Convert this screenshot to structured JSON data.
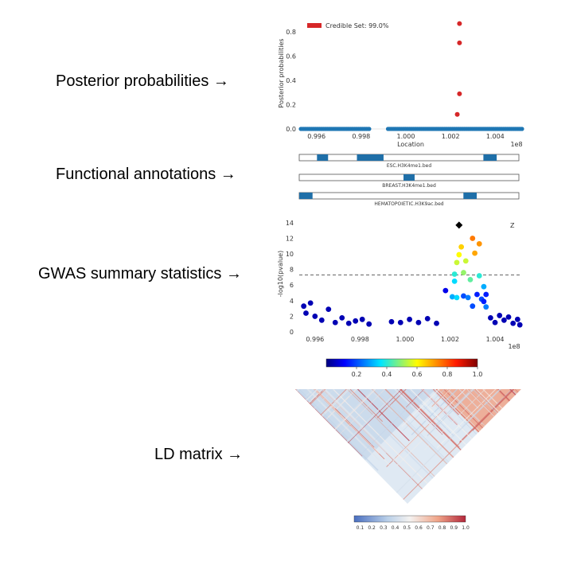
{
  "labels": {
    "posterior": "Posterior probabilities →",
    "functional": "Functional annotations →",
    "gwas": "GWAS summary statistics →",
    "ld": "LD matrix →"
  },
  "chart_data": [
    {
      "type": "scatter",
      "ylabel": "Posterior probabilities",
      "xlabel": "Location",
      "x_scale_label": "1e8",
      "legend_label": "Credible Set: 99.0%",
      "legend_color": "#d62728",
      "xlim": [
        0.9953,
        1.0052
      ],
      "ylim": [
        0,
        0.9
      ],
      "xticks": [
        {
          "v": 0.996,
          "label": "0.996"
        },
        {
          "v": 0.998,
          "label": "0.998"
        },
        {
          "v": 1.0,
          "label": "1.000"
        },
        {
          "v": 1.002,
          "label": "1.002"
        },
        {
          "v": 1.004,
          "label": "1.004"
        }
      ],
      "yticks": [
        {
          "v": 0.0,
          "label": "0.0"
        },
        {
          "v": 0.2,
          "label": "0.2"
        },
        {
          "v": 0.4,
          "label": "0.4"
        },
        {
          "v": 0.6,
          "label": "0.6"
        },
        {
          "v": 0.8,
          "label": "0.8"
        }
      ],
      "background_color": "#1f77b4",
      "background_ranges": [
        [
          0.9953,
          0.9984
        ],
        [
          0.9992,
          1.0052
        ]
      ],
      "credible_set_points": [
        {
          "x": 1.0024,
          "y": 0.87
        },
        {
          "x": 1.0024,
          "y": 0.71
        },
        {
          "x": 1.0024,
          "y": 0.29
        },
        {
          "x": 1.0023,
          "y": 0.12
        }
      ]
    },
    {
      "type": "table",
      "tracks": [
        {
          "name": "ESC.H3K4me1.bed",
          "blocks": [
            [
              0.9961,
              0.9966
            ],
            [
              0.9979,
              0.9991
            ],
            [
              1.0036,
              1.0042
            ]
          ]
        },
        {
          "name": "BREAST.H3K4me1.bed",
          "blocks": [
            [
              1.0,
              1.0005
            ]
          ]
        },
        {
          "name": "HEMATOPOIETIC.H3K9ac.bed",
          "blocks": [
            [
              0.9953,
              0.9959
            ],
            [
              1.0027,
              1.0033
            ]
          ]
        }
      ]
    },
    {
      "type": "scatter",
      "ylabel": "-log10(pvalue)",
      "x_scale_label": "1e8",
      "corner_label": "Z",
      "xlim": [
        0.9953,
        1.0052
      ],
      "ylim": [
        0,
        14.5
      ],
      "threshold": 7.3,
      "xticks": [
        {
          "v": 0.996,
          "label": "0.996"
        },
        {
          "v": 0.998,
          "label": "0.998"
        },
        {
          "v": 1.0,
          "label": "1.000"
        },
        {
          "v": 1.002,
          "label": "1.002"
        },
        {
          "v": 1.004,
          "label": "1.004"
        }
      ],
      "yticks": [
        {
          "v": 0,
          "label": "0"
        },
        {
          "v": 2,
          "label": "2"
        },
        {
          "v": 4,
          "label": "4"
        },
        {
          "v": 6,
          "label": "6"
        },
        {
          "v": 8,
          "label": "8"
        },
        {
          "v": 10,
          "label": "10"
        },
        {
          "v": 12,
          "label": "12"
        },
        {
          "v": 14,
          "label": "14"
        }
      ],
      "lead_snp": {
        "x": 1.0024,
        "y": 13.7
      },
      "points": [
        {
          "x": 0.9955,
          "y": 3.3,
          "ld": 0.05
        },
        {
          "x": 0.9956,
          "y": 2.4,
          "ld": 0.05
        },
        {
          "x": 0.9958,
          "y": 3.7,
          "ld": 0.05
        },
        {
          "x": 0.996,
          "y": 2.0,
          "ld": 0.05
        },
        {
          "x": 0.9963,
          "y": 1.5,
          "ld": 0.05
        },
        {
          "x": 0.9966,
          "y": 2.9,
          "ld": 0.05
        },
        {
          "x": 0.9969,
          "y": 1.2,
          "ld": 0.05
        },
        {
          "x": 0.9972,
          "y": 1.8,
          "ld": 0.05
        },
        {
          "x": 0.9975,
          "y": 1.1,
          "ld": 0.05
        },
        {
          "x": 0.9978,
          "y": 1.4,
          "ld": 0.05
        },
        {
          "x": 0.9981,
          "y": 1.6,
          "ld": 0.05
        },
        {
          "x": 0.9984,
          "y": 1.0,
          "ld": 0.05
        },
        {
          "x": 0.9994,
          "y": 1.3,
          "ld": 0.05
        },
        {
          "x": 0.9998,
          "y": 1.2,
          "ld": 0.05
        },
        {
          "x": 1.0002,
          "y": 1.6,
          "ld": 0.05
        },
        {
          "x": 1.0006,
          "y": 1.2,
          "ld": 0.05
        },
        {
          "x": 1.001,
          "y": 1.7,
          "ld": 0.05
        },
        {
          "x": 1.0014,
          "y": 1.1,
          "ld": 0.05
        },
        {
          "x": 1.0018,
          "y": 5.3,
          "ld": 0.1
        },
        {
          "x": 1.0021,
          "y": 4.5,
          "ld": 0.3
        },
        {
          "x": 1.0022,
          "y": 6.5,
          "ld": 0.35
        },
        {
          "x": 1.0022,
          "y": 7.4,
          "ld": 0.4
        },
        {
          "x": 1.0023,
          "y": 8.9,
          "ld": 0.55
        },
        {
          "x": 1.0023,
          "y": 4.4,
          "ld": 0.35
        },
        {
          "x": 1.0024,
          "y": 9.9,
          "ld": 0.6
        },
        {
          "x": 1.0025,
          "y": 10.9,
          "ld": 0.65
        },
        {
          "x": 1.0026,
          "y": 7.6,
          "ld": 0.5
        },
        {
          "x": 1.0026,
          "y": 4.6,
          "ld": 0.2
        },
        {
          "x": 1.0027,
          "y": 9.1,
          "ld": 0.55
        },
        {
          "x": 1.0028,
          "y": 4.4,
          "ld": 0.25
        },
        {
          "x": 1.0029,
          "y": 6.7,
          "ld": 0.45
        },
        {
          "x": 1.003,
          "y": 3.3,
          "ld": 0.2
        },
        {
          "x": 1.003,
          "y": 12.0,
          "ld": 0.75
        },
        {
          "x": 1.0031,
          "y": 10.1,
          "ld": 0.7
        },
        {
          "x": 1.0032,
          "y": 4.8,
          "ld": 0.15
        },
        {
          "x": 1.0033,
          "y": 11.3,
          "ld": 0.72
        },
        {
          "x": 1.0033,
          "y": 7.2,
          "ld": 0.4
        },
        {
          "x": 1.0034,
          "y": 4.2,
          "ld": 0.2
        },
        {
          "x": 1.0035,
          "y": 5.8,
          "ld": 0.3
        },
        {
          "x": 1.0035,
          "y": 3.9,
          "ld": 0.15
        },
        {
          "x": 1.0036,
          "y": 3.2,
          "ld": 0.25
        },
        {
          "x": 1.0036,
          "y": 4.8,
          "ld": 0.15
        },
        {
          "x": 1.0038,
          "y": 1.8,
          "ld": 0.05
        },
        {
          "x": 1.004,
          "y": 1.2,
          "ld": 0.05
        },
        {
          "x": 1.0042,
          "y": 2.1,
          "ld": 0.05
        },
        {
          "x": 1.0044,
          "y": 1.5,
          "ld": 0.05
        },
        {
          "x": 1.0046,
          "y": 1.9,
          "ld": 0.05
        },
        {
          "x": 1.0048,
          "y": 1.1,
          "ld": 0.05
        },
        {
          "x": 1.005,
          "y": 1.6,
          "ld": 0.05
        },
        {
          "x": 1.0051,
          "y": 0.9,
          "ld": 0.05
        }
      ],
      "colorbar_ticks": [
        {
          "v": 0.2,
          "label": "0.2"
        },
        {
          "v": 0.4,
          "label": "0.4"
        },
        {
          "v": 0.6,
          "label": "0.6"
        },
        {
          "v": 0.8,
          "label": "0.8"
        },
        {
          "v": 1.0,
          "label": "1.0"
        }
      ]
    },
    {
      "type": "heatmap",
      "shape": "triangle",
      "colormap": "RdBu_r",
      "blocks": [
        [
          0,
          0.62,
          0.35
        ],
        [
          0.62,
          1.0,
          0.75
        ]
      ],
      "colorbar_ticks": [
        {
          "v": 0.1,
          "label": "0.1"
        },
        {
          "v": 0.2,
          "label": "0.2"
        },
        {
          "v": 0.3,
          "label": "0.3"
        },
        {
          "v": 0.4,
          "label": "0.4"
        },
        {
          "v": 0.5,
          "label": "0.5"
        },
        {
          "v": 0.6,
          "label": "0.6"
        },
        {
          "v": 0.7,
          "label": "0.7"
        },
        {
          "v": 0.8,
          "label": "0.8"
        },
        {
          "v": 0.9,
          "label": "0.9"
        },
        {
          "v": 1.0,
          "label": "1.0"
        }
      ]
    }
  ]
}
